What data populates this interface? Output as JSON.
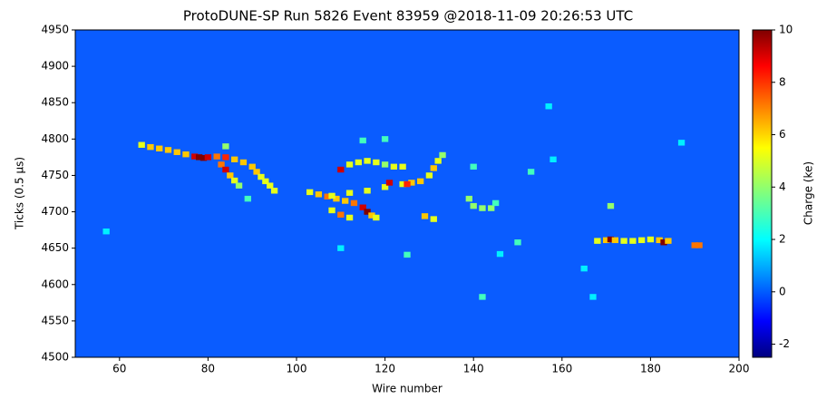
{
  "chart_data": {
    "type": "heatmap",
    "title": "ProtoDUNE-SP Run 5826 Event 83959 @2018-11-09 20:26:53 UTC",
    "xlabel": "Wire number",
    "ylabel": "Ticks (0.5 μs)",
    "colorbar_label": "Charge (ke)",
    "xlim": [
      50,
      200
    ],
    "xticks": [
      60,
      80,
      100,
      120,
      140,
      160,
      180,
      200
    ],
    "ylim": [
      4500,
      4950
    ],
    "yticks": [
      4500,
      4550,
      4600,
      4650,
      4700,
      4750,
      4800,
      4850,
      4900,
      4950
    ],
    "clim": [
      -2.5,
      10
    ],
    "cticks": [
      -2,
      0,
      2,
      4,
      6,
      8,
      10
    ],
    "x": [
      65,
      67,
      69,
      71,
      73,
      75,
      77,
      78,
      79,
      80,
      82,
      84,
      86,
      88,
      90,
      91,
      92,
      93,
      94,
      95,
      83,
      84,
      85,
      86,
      87,
      89,
      84,
      103,
      105,
      107,
      109,
      111,
      113,
      115,
      116,
      117,
      118,
      108,
      110,
      112,
      110,
      112,
      114,
      116,
      118,
      120,
      122,
      124,
      108,
      112,
      116,
      120,
      124,
      126,
      128,
      130,
      131,
      132,
      133,
      121,
      125,
      129,
      131,
      139,
      140,
      142,
      144,
      145,
      140,
      125,
      150,
      153,
      158,
      142,
      165,
      167,
      171,
      120,
      115,
      187,
      157,
      57,
      110,
      146,
      168,
      170,
      171,
      172,
      174,
      176,
      178,
      180,
      182,
      183,
      184,
      190,
      191
    ],
    "y": [
      4792,
      4789,
      4787,
      4785,
      4782,
      4779,
      4776,
      4775,
      4774,
      4775,
      4776,
      4775,
      4772,
      4768,
      4762,
      4755,
      4748,
      4742,
      4736,
      4729,
      4765,
      4758,
      4750,
      4743,
      4736,
      4718,
      4790,
      4727,
      4724,
      4721,
      4718,
      4715,
      4712,
      4706,
      4700,
      4695,
      4692,
      4702,
      4696,
      4692,
      4758,
      4765,
      4768,
      4770,
      4768,
      4765,
      4762,
      4762,
      4722,
      4726,
      4729,
      4734,
      4738,
      4740,
      4742,
      4750,
      4760,
      4770,
      4778,
      4740,
      4738,
      4694,
      4690,
      4718,
      4708,
      4705,
      4705,
      4712,
      4762,
      4641,
      4658,
      4755,
      4772,
      4583,
      4622,
      4583,
      4708,
      4800,
      4798,
      4795,
      4845,
      4673,
      4650,
      4642,
      4660,
      4661,
      4662,
      4661,
      4660,
      4660,
      4661,
      4662,
      4661,
      4658,
      4660,
      4654,
      4654
    ],
    "values": [
      5,
      6,
      6,
      6,
      6,
      6,
      9,
      10,
      10,
      9,
      7,
      8,
      6,
      6,
      6,
      6,
      5,
      5,
      5,
      5,
      7,
      9,
      6,
      5,
      4,
      3,
      4,
      5,
      6,
      7,
      6,
      6,
      7,
      9,
      10,
      6,
      5,
      5,
      7,
      5,
      9,
      5,
      5,
      5,
      5,
      4,
      5,
      5,
      5,
      5,
      5,
      5,
      5,
      6,
      6,
      5,
      6,
      5,
      4,
      9,
      8,
      6,
      5,
      4,
      4,
      4,
      4,
      3,
      3,
      3,
      3,
      3,
      2,
      3,
      2,
      2,
      4,
      3,
      3,
      2,
      2,
      2,
      2,
      2,
      5,
      6,
      10,
      6,
      5,
      5,
      5,
      5,
      6,
      10,
      6,
      7,
      7
    ]
  }
}
